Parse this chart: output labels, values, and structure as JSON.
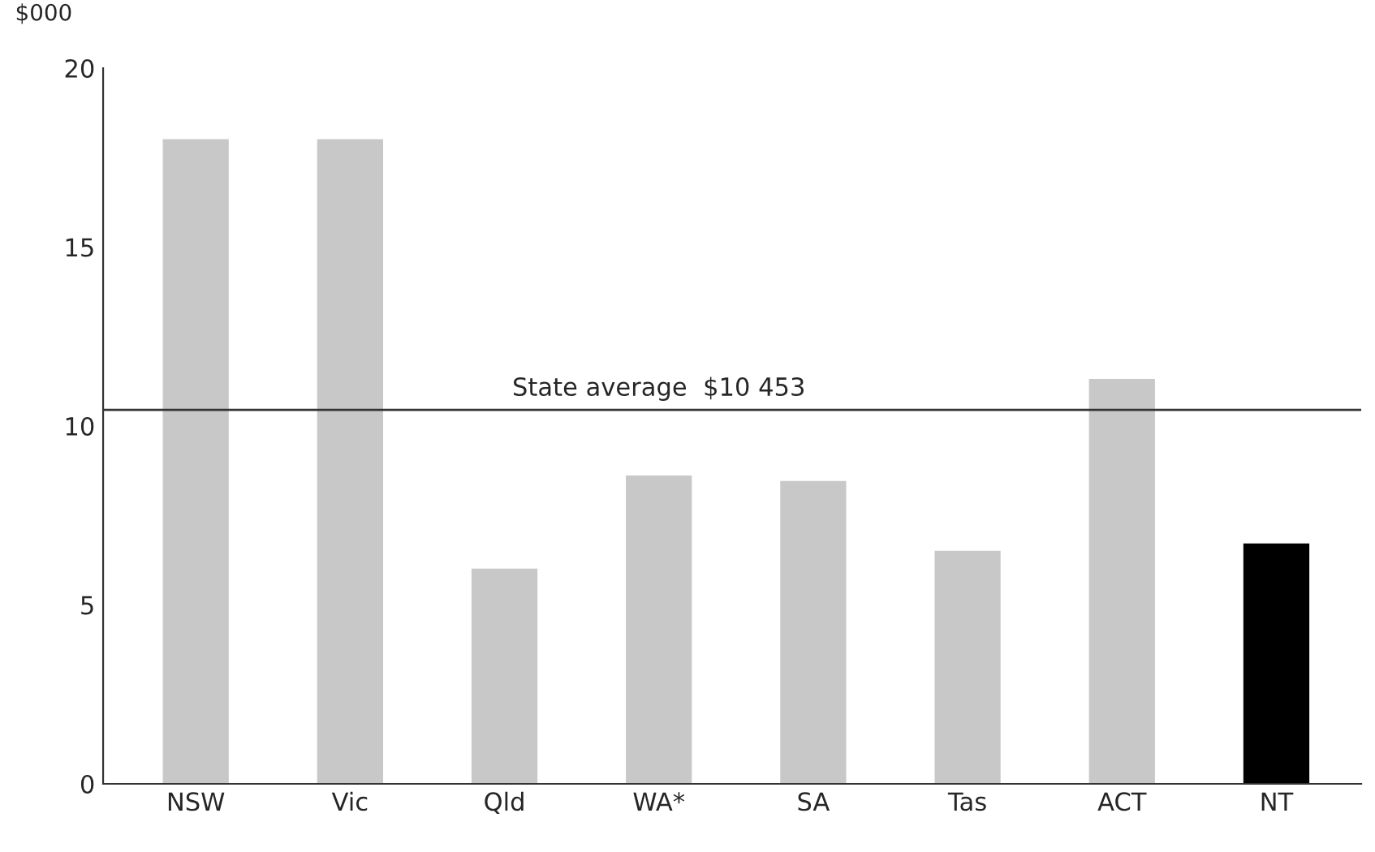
{
  "chart_data": {
    "type": "bar",
    "ylabel": "$000",
    "categories": [
      "NSW",
      "Vic",
      "Qld",
      "WA*",
      "SA",
      "Tas",
      "ACT",
      "NT"
    ],
    "values": [
      18.0,
      18.0,
      6.0,
      8.6,
      8.45,
      6.5,
      11.3,
      6.7
    ],
    "colors": [
      "#c8c8c8",
      "#c8c8c8",
      "#c8c8c8",
      "#c8c8c8",
      "#c8c8c8",
      "#c8c8c8",
      "#c8c8c8",
      "#000000"
    ],
    "ylim": [
      0,
      20
    ],
    "yticks": [
      0,
      5,
      10,
      15,
      20
    ],
    "grid": false,
    "ref_lines": [
      {
        "axis": "y",
        "value": 10.453,
        "label": "State average  $10 453",
        "color": "#333333",
        "line_style": "solid"
      }
    ]
  }
}
